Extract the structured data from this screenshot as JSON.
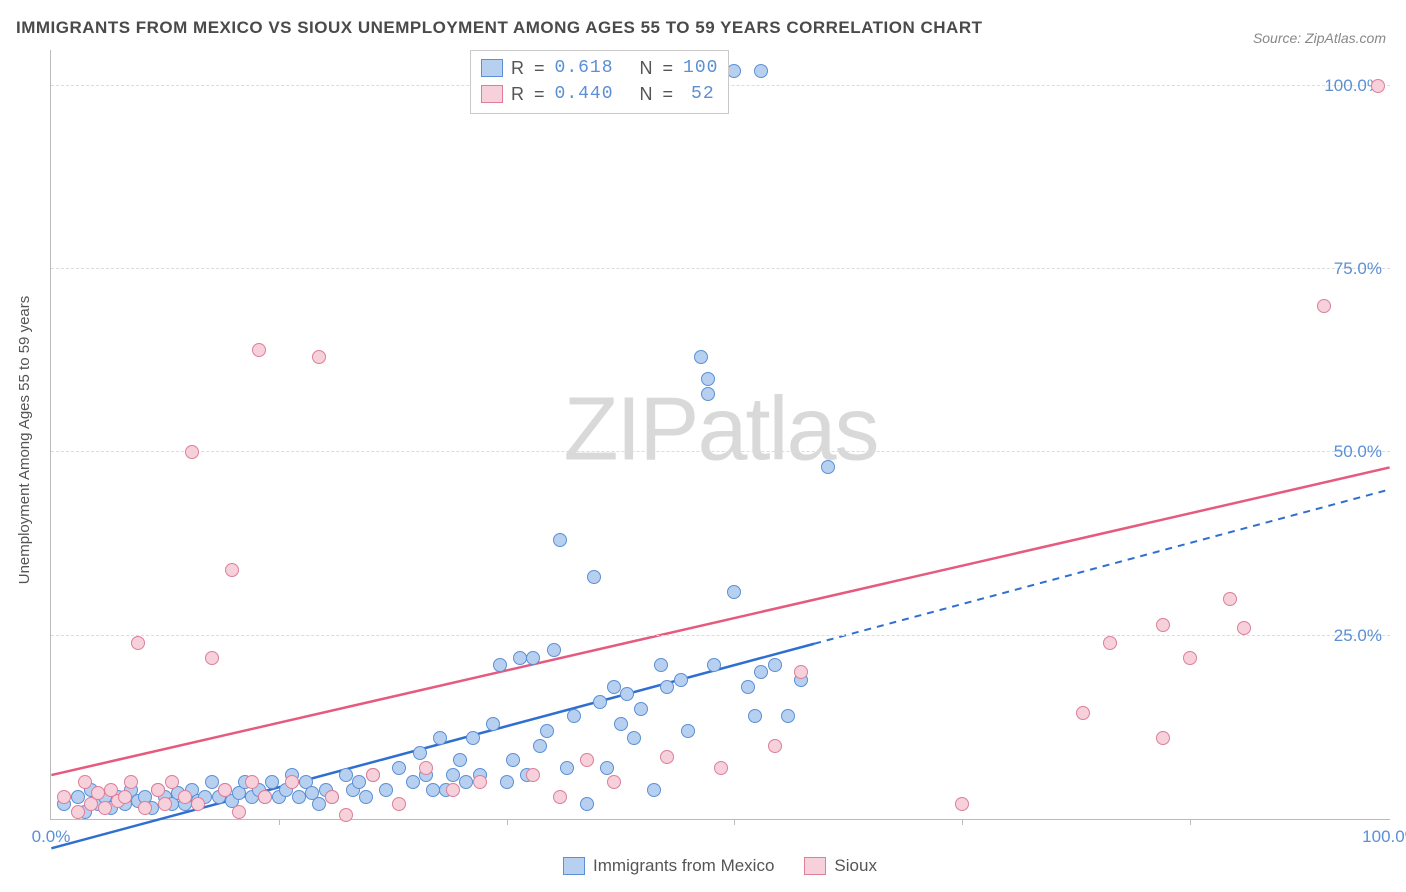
{
  "title": "IMMIGRANTS FROM MEXICO VS SIOUX UNEMPLOYMENT AMONG AGES 55 TO 59 YEARS CORRELATION CHART",
  "source_label": "Source: ",
  "source_value": "ZipAtlas.com",
  "y_axis_label": "Unemployment Among Ages 55 to 59 years",
  "watermark": {
    "zip": "ZIP",
    "atlas": "atlas"
  },
  "chart": {
    "type": "scatter",
    "xlim": [
      0,
      100
    ],
    "ylim": [
      0,
      105
    ],
    "grid_y": [
      25,
      50,
      75,
      100
    ],
    "grid_x": [
      17,
      34,
      51,
      68,
      85
    ],
    "y_tick_labels": [
      {
        "v": 25,
        "label": "25.0%"
      },
      {
        "v": 50,
        "label": "50.0%"
      },
      {
        "v": 75,
        "label": "75.0%"
      },
      {
        "v": 100,
        "label": "100.0%"
      }
    ],
    "x_tick_labels": [
      {
        "v": 0,
        "label": "0.0%"
      },
      {
        "v": 100,
        "label": "100.0%"
      }
    ],
    "background_color": "#ffffff",
    "grid_color": "#dcdcdc",
    "axis_color": "#bbbbbb",
    "label_color": "#5b8fd6"
  },
  "series": [
    {
      "id": "mexico",
      "label": "Immigrants from Mexico",
      "r_value": "0.618",
      "n_value": "100",
      "marker_fill": "#b8d0ef",
      "marker_stroke": "#5b8fd6",
      "marker_radius": 7,
      "line_color": "#2f6fd0",
      "line_solid_xmax": 57,
      "trend": {
        "x1": 0,
        "y1": -4,
        "x2": 100,
        "y2": 45
      },
      "points": [
        [
          1,
          2
        ],
        [
          2,
          3
        ],
        [
          2.5,
          1
        ],
        [
          3,
          4
        ],
        [
          3.5,
          2
        ],
        [
          4,
          3
        ],
        [
          4.5,
          1.5
        ],
        [
          5,
          3
        ],
        [
          5.5,
          2
        ],
        [
          6,
          4
        ],
        [
          6.5,
          2.5
        ],
        [
          7,
          3
        ],
        [
          7.5,
          1.5
        ],
        [
          8,
          4
        ],
        [
          8.5,
          3
        ],
        [
          9,
          2
        ],
        [
          9.5,
          3.5
        ],
        [
          10,
          2
        ],
        [
          10.5,
          4
        ],
        [
          11,
          2.5
        ],
        [
          11.5,
          3
        ],
        [
          12,
          5
        ],
        [
          12.5,
          3
        ],
        [
          13,
          4
        ],
        [
          13.5,
          2.5
        ],
        [
          14,
          3.5
        ],
        [
          14.5,
          5
        ],
        [
          15,
          3
        ],
        [
          15.5,
          4
        ],
        [
          16,
          3
        ],
        [
          16.5,
          5
        ],
        [
          17,
          3
        ],
        [
          17.5,
          4
        ],
        [
          18,
          6
        ],
        [
          18.5,
          3
        ],
        [
          19,
          5
        ],
        [
          19.5,
          3.5
        ],
        [
          20,
          2
        ],
        [
          20.5,
          4
        ],
        [
          21,
          3
        ],
        [
          22,
          6
        ],
        [
          22.5,
          4
        ],
        [
          23,
          5
        ],
        [
          23.5,
          3
        ],
        [
          24,
          6
        ],
        [
          25,
          4
        ],
        [
          26,
          7
        ],
        [
          27,
          5
        ],
        [
          27.5,
          9
        ],
        [
          28,
          6
        ],
        [
          28.5,
          4
        ],
        [
          29,
          11
        ],
        [
          29.5,
          4
        ],
        [
          30,
          6
        ],
        [
          30.5,
          8
        ],
        [
          31,
          5
        ],
        [
          31.5,
          11
        ],
        [
          32,
          6
        ],
        [
          33,
          13
        ],
        [
          33.5,
          21
        ],
        [
          34,
          5
        ],
        [
          34.5,
          8
        ],
        [
          35,
          22
        ],
        [
          35.5,
          6
        ],
        [
          36,
          22
        ],
        [
          36.5,
          10
        ],
        [
          37,
          12
        ],
        [
          37.5,
          23
        ],
        [
          38,
          38
        ],
        [
          38.5,
          7
        ],
        [
          39,
          14
        ],
        [
          40,
          2
        ],
        [
          40.5,
          33
        ],
        [
          41,
          16
        ],
        [
          41.5,
          7
        ],
        [
          42,
          18
        ],
        [
          42.5,
          13
        ],
        [
          43,
          17
        ],
        [
          43.5,
          11
        ],
        [
          44,
          15
        ],
        [
          45,
          4
        ],
        [
          45.5,
          21
        ],
        [
          46,
          18
        ],
        [
          47,
          19
        ],
        [
          47.5,
          12
        ],
        [
          48.5,
          63
        ],
        [
          49,
          58
        ],
        [
          49,
          60
        ],
        [
          49.5,
          21
        ],
        [
          51,
          31
        ],
        [
          52,
          18
        ],
        [
          52.5,
          14
        ],
        [
          53,
          20
        ],
        [
          54,
          21
        ],
        [
          55,
          14
        ],
        [
          56,
          19
        ],
        [
          58,
          48
        ],
        [
          51,
          102
        ],
        [
          53,
          102
        ],
        [
          49,
          102
        ]
      ]
    },
    {
      "id": "sioux",
      "label": "Sioux",
      "r_value": "0.440",
      "n_value": "52",
      "marker_fill": "#f6d0da",
      "marker_stroke": "#de7e99",
      "marker_radius": 7,
      "line_color": "#e55a7d",
      "line_solid_xmax": 100,
      "trend": {
        "x1": 0,
        "y1": 6,
        "x2": 100,
        "y2": 48
      },
      "points": [
        [
          1,
          3
        ],
        [
          2,
          1
        ],
        [
          2.5,
          5
        ],
        [
          3,
          2
        ],
        [
          3.5,
          3.5
        ],
        [
          4,
          1.5
        ],
        [
          4.5,
          4
        ],
        [
          5,
          2.5
        ],
        [
          5.5,
          3
        ],
        [
          6,
          5
        ],
        [
          6.5,
          24
        ],
        [
          7,
          1.5
        ],
        [
          8,
          4
        ],
        [
          8.5,
          2
        ],
        [
          9,
          5
        ],
        [
          10,
          3
        ],
        [
          10.5,
          50
        ],
        [
          11,
          2
        ],
        [
          12,
          22
        ],
        [
          13,
          4
        ],
        [
          13.5,
          34
        ],
        [
          14,
          1
        ],
        [
          15,
          5
        ],
        [
          15.5,
          64
        ],
        [
          16,
          3
        ],
        [
          18,
          5
        ],
        [
          20,
          63
        ],
        [
          21,
          3
        ],
        [
          22,
          0.5
        ],
        [
          24,
          6
        ],
        [
          26,
          2
        ],
        [
          28,
          7
        ],
        [
          30,
          4
        ],
        [
          32,
          5
        ],
        [
          36,
          6
        ],
        [
          38,
          3
        ],
        [
          40,
          8
        ],
        [
          42,
          5
        ],
        [
          46,
          8.5
        ],
        [
          50,
          7
        ],
        [
          54,
          10
        ],
        [
          56,
          20
        ],
        [
          68,
          2
        ],
        [
          77,
          14.5
        ],
        [
          79,
          24
        ],
        [
          83,
          11
        ],
        [
          83,
          26.5
        ],
        [
          85,
          22
        ],
        [
          88,
          30
        ],
        [
          89,
          26
        ],
        [
          95,
          70
        ],
        [
          99,
          100
        ]
      ]
    }
  ],
  "stats_legend": {
    "r_label": "R",
    "n_label": "N",
    "equals": "="
  },
  "bottom_legend": {
    "items_ref": [
      "mexico",
      "sioux"
    ]
  }
}
